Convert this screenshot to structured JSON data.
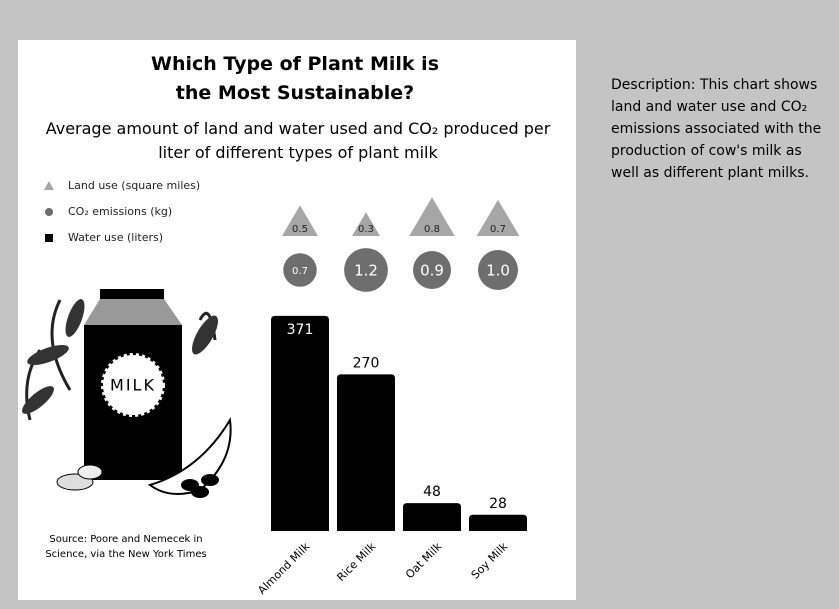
{
  "chart_data": {
    "type": "bar",
    "title": "Which Type of Plant Milk is the Most Sustainable?",
    "subtitle": "Average amount of land and water used and CO₂ produced per liter of different types of plant milk",
    "categories": [
      "Almond Milk",
      "Rice Milk",
      "Oat Milk",
      "Soy Milk"
    ],
    "series": [
      {
        "name": "Land use (square miles)",
        "color": "#a6a6a6",
        "values": [
          0.5,
          0.3,
          0.8,
          0.7
        ]
      },
      {
        "name": "CO₂ emissions (kg)",
        "color": "#6e6e6e",
        "values": [
          0.7,
          1.2,
          0.9,
          1.0
        ],
        "value_labels": [
          "0.7",
          "1.2",
          "0.9",
          "1.0"
        ]
      },
      {
        "name": "Water use (liters)",
        "color": "#000000",
        "values": [
          371,
          270,
          48,
          28
        ]
      }
    ],
    "illustration_label": "MILK",
    "source": "Source: Poore and Nemecek in Science, via the New York Times",
    "description": "Description: This chart shows land and water use and CO₂ emissions associated with the production of cow's milk as well as different plant milks."
  }
}
